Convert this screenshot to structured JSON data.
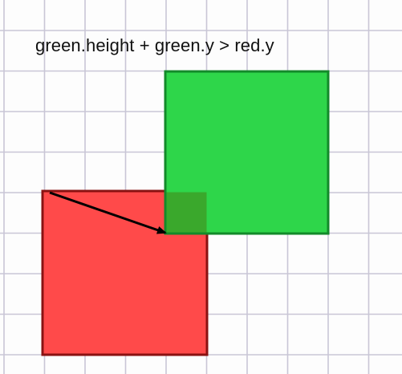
{
  "diagram": {
    "caption": "green.height + green.y > red.y",
    "background": {
      "style": "graph-paper",
      "paper_color": "#fdfdfd",
      "grid_color": "#c9c6d6"
    },
    "shapes": [
      {
        "id": "red",
        "kind": "rect",
        "fill": "#ff4a4a",
        "stroke": "#8a1212"
      },
      {
        "id": "green",
        "kind": "rect",
        "fill": "#2ed64a",
        "stroke": "#138a2a"
      }
    ],
    "overlap_fill": "#3aa82c",
    "arrow": {
      "from": "bottom-left corner of green",
      "to": "top-left corner of red",
      "color": "#000000"
    }
  }
}
